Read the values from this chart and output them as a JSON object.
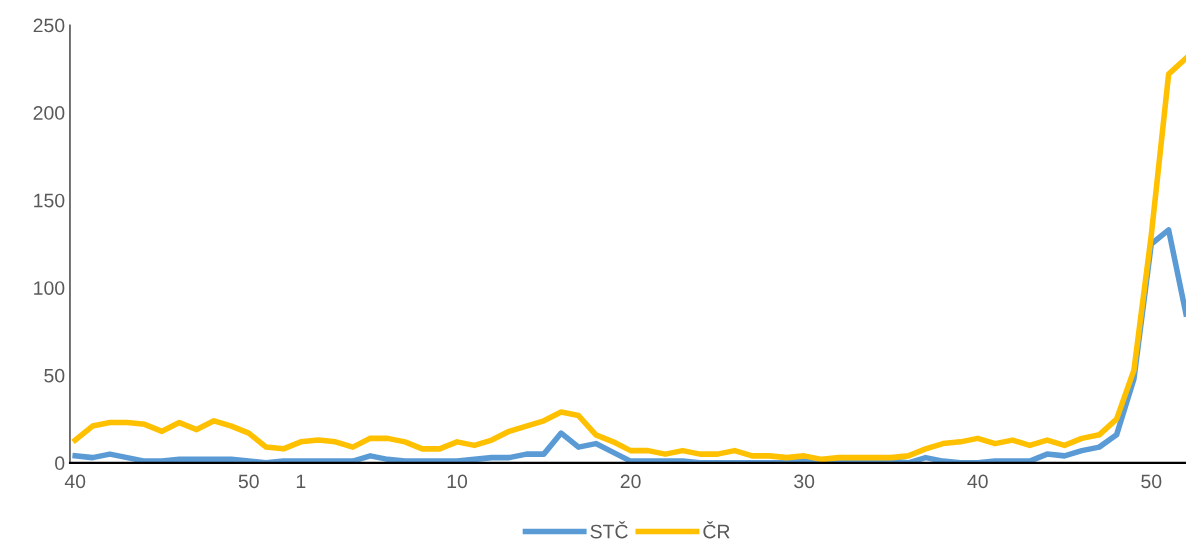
{
  "chart_data": {
    "type": "line",
    "categories": [
      "40",
      null,
      null,
      null,
      null,
      null,
      null,
      null,
      null,
      null,
      "50",
      null,
      null,
      "1",
      null,
      null,
      null,
      null,
      null,
      null,
      null,
      null,
      "10",
      null,
      null,
      null,
      null,
      null,
      null,
      null,
      null,
      null,
      "20",
      null,
      null,
      null,
      null,
      null,
      null,
      null,
      null,
      null,
      "30",
      null,
      null,
      null,
      null,
      null,
      null,
      null,
      null,
      null,
      "40",
      null,
      null,
      null,
      null,
      null,
      null,
      null,
      null,
      null,
      "50",
      null,
      null
    ],
    "series": [
      {
        "name": "STČ",
        "color": "#5b9bd5",
        "values": [
          4,
          3,
          5,
          3,
          1,
          1,
          2,
          2,
          2,
          2,
          1,
          0,
          1,
          1,
          1,
          1,
          1,
          4,
          2,
          1,
          1,
          1,
          1,
          2,
          3,
          3,
          5,
          5,
          17,
          9,
          11,
          6,
          1,
          1,
          1,
          1,
          0,
          0,
          0,
          0,
          0,
          0,
          1,
          0,
          0,
          0,
          0,
          1,
          0,
          3,
          1,
          0,
          0,
          1,
          1,
          1,
          5,
          4,
          7,
          9,
          16,
          48,
          125,
          133,
          85
        ]
      },
      {
        "name": "ČR",
        "color": "#ffc000",
        "values": [
          13,
          21,
          23,
          23,
          22,
          18,
          23,
          19,
          24,
          21,
          17,
          9,
          8,
          12,
          13,
          12,
          9,
          14,
          14,
          12,
          8,
          8,
          12,
          10,
          13,
          18,
          21,
          24,
          29,
          27,
          16,
          12,
          7,
          7,
          5,
          7,
          5,
          5,
          7,
          4,
          4,
          3,
          4,
          2,
          3,
          3,
          3,
          3,
          4,
          8,
          11,
          12,
          14,
          11,
          13,
          10,
          13,
          10,
          14,
          16,
          25,
          53,
          130,
          222,
          231
        ]
      }
    ],
    "ylim": [
      0,
      250
    ],
    "yticks": [
      0,
      50,
      100,
      150,
      200,
      250
    ],
    "grid": false,
    "legend": "bottom",
    "marker": "none",
    "line_style": "solid"
  }
}
